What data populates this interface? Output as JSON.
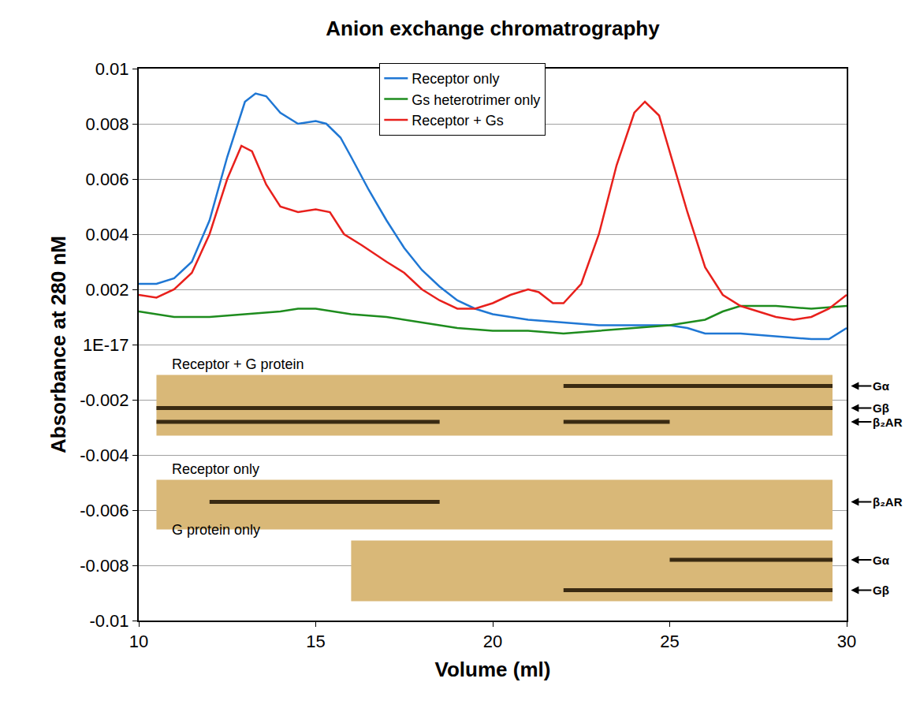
{
  "chart_data": {
    "type": "line",
    "title": "Anion exchange chromatrography",
    "x_label": "Volume (ml)",
    "y_label": "Absorbance at 280 nM",
    "xlim": [
      10,
      30
    ],
    "xticks": [
      10,
      15,
      20,
      25,
      30
    ],
    "ylim": [
      -0.01,
      0.01
    ],
    "yticks": [
      -0.01,
      -0.008,
      -0.006,
      -0.004,
      -0.002,
      {
        "value": 0,
        "label": "1E-17"
      },
      0.002,
      0.004,
      0.006,
      0.008,
      0.01
    ],
    "grid": true,
    "legend": "top",
    "series": [
      {
        "name": "Receptor only",
        "color": "#1f77d4",
        "x": [
          10,
          10.5,
          11,
          11.5,
          12,
          12.5,
          13,
          13.3,
          13.6,
          14,
          14.5,
          15,
          15.3,
          15.7,
          16,
          16.5,
          17,
          17.5,
          18,
          18.5,
          19,
          19.5,
          20,
          21,
          22,
          23,
          24,
          25,
          25.5,
          26,
          27,
          28,
          29,
          29.5,
          30
        ],
        "values": [
          0.0022,
          0.0022,
          0.0024,
          0.003,
          0.0045,
          0.0068,
          0.0088,
          0.0091,
          0.009,
          0.0084,
          0.008,
          0.0081,
          0.008,
          0.0075,
          0.0068,
          0.0056,
          0.0045,
          0.0035,
          0.0027,
          0.0021,
          0.0016,
          0.0013,
          0.0011,
          0.0009,
          0.0008,
          0.0007,
          0.0007,
          0.0007,
          0.0006,
          0.0004,
          0.0004,
          0.0003,
          0.0002,
          0.0002,
          0.0006
        ]
      },
      {
        "name": "Gs heterotrimer only",
        "color": "#1e8c1e",
        "x": [
          10,
          11,
          12,
          13,
          14,
          14.5,
          15,
          16,
          17,
          18,
          19,
          20,
          21,
          22,
          23,
          24,
          25,
          26,
          26.5,
          27,
          28,
          29,
          30
        ],
        "values": [
          0.0012,
          0.001,
          0.001,
          0.0011,
          0.0012,
          0.0013,
          0.0013,
          0.0011,
          0.001,
          0.0008,
          0.0006,
          0.0005,
          0.0005,
          0.0004,
          0.0005,
          0.0006,
          0.0007,
          0.0009,
          0.0012,
          0.0014,
          0.0014,
          0.0013,
          0.0014
        ]
      },
      {
        "name": "Receptor + Gs",
        "color": "#e8201c",
        "x": [
          10,
          10.5,
          11,
          11.5,
          12,
          12.5,
          12.9,
          13.2,
          13.6,
          14,
          14.5,
          15,
          15.4,
          15.8,
          16.3,
          17,
          17.5,
          18,
          18.5,
          19,
          19.5,
          20,
          20.5,
          21,
          21.3,
          21.7,
          22,
          22.5,
          23,
          23.5,
          24,
          24.3,
          24.7,
          25,
          25.5,
          26,
          26.5,
          27,
          27.5,
          28,
          28.5,
          29,
          29.5,
          30
        ],
        "values": [
          0.0018,
          0.0017,
          0.002,
          0.0026,
          0.004,
          0.006,
          0.0072,
          0.007,
          0.0058,
          0.005,
          0.0048,
          0.0049,
          0.0048,
          0.004,
          0.0036,
          0.003,
          0.0026,
          0.002,
          0.0016,
          0.0013,
          0.0013,
          0.0015,
          0.0018,
          0.002,
          0.0019,
          0.0015,
          0.0015,
          0.0022,
          0.004,
          0.0065,
          0.0084,
          0.0088,
          0.0083,
          0.007,
          0.0048,
          0.0028,
          0.0018,
          0.0014,
          0.0012,
          0.001,
          0.0009,
          0.001,
          0.0013,
          0.0018
        ]
      }
    ],
    "gels": [
      {
        "title": "Receptor + G protein",
        "bands": [
          {
            "label": "Gα",
            "spans": [
              [
                22,
                29.6
              ]
            ]
          },
          {
            "label": "Gβ",
            "spans": [
              [
                10.5,
                29.6
              ]
            ]
          },
          {
            "label": "β₂AR",
            "spans": [
              [
                10.5,
                18.5
              ],
              [
                22,
                25
              ]
            ]
          }
        ]
      },
      {
        "title": "Receptor only",
        "bands": [
          {
            "label": "β₂AR",
            "spans": [
              [
                12,
                18.5
              ]
            ]
          }
        ]
      },
      {
        "title": "G protein only",
        "bands": [
          {
            "label": "Gα",
            "spans": [
              [
                25,
                29.6
              ]
            ]
          },
          {
            "label": "Gβ",
            "spans": [
              [
                22,
                29.6
              ]
            ]
          }
        ]
      }
    ]
  }
}
